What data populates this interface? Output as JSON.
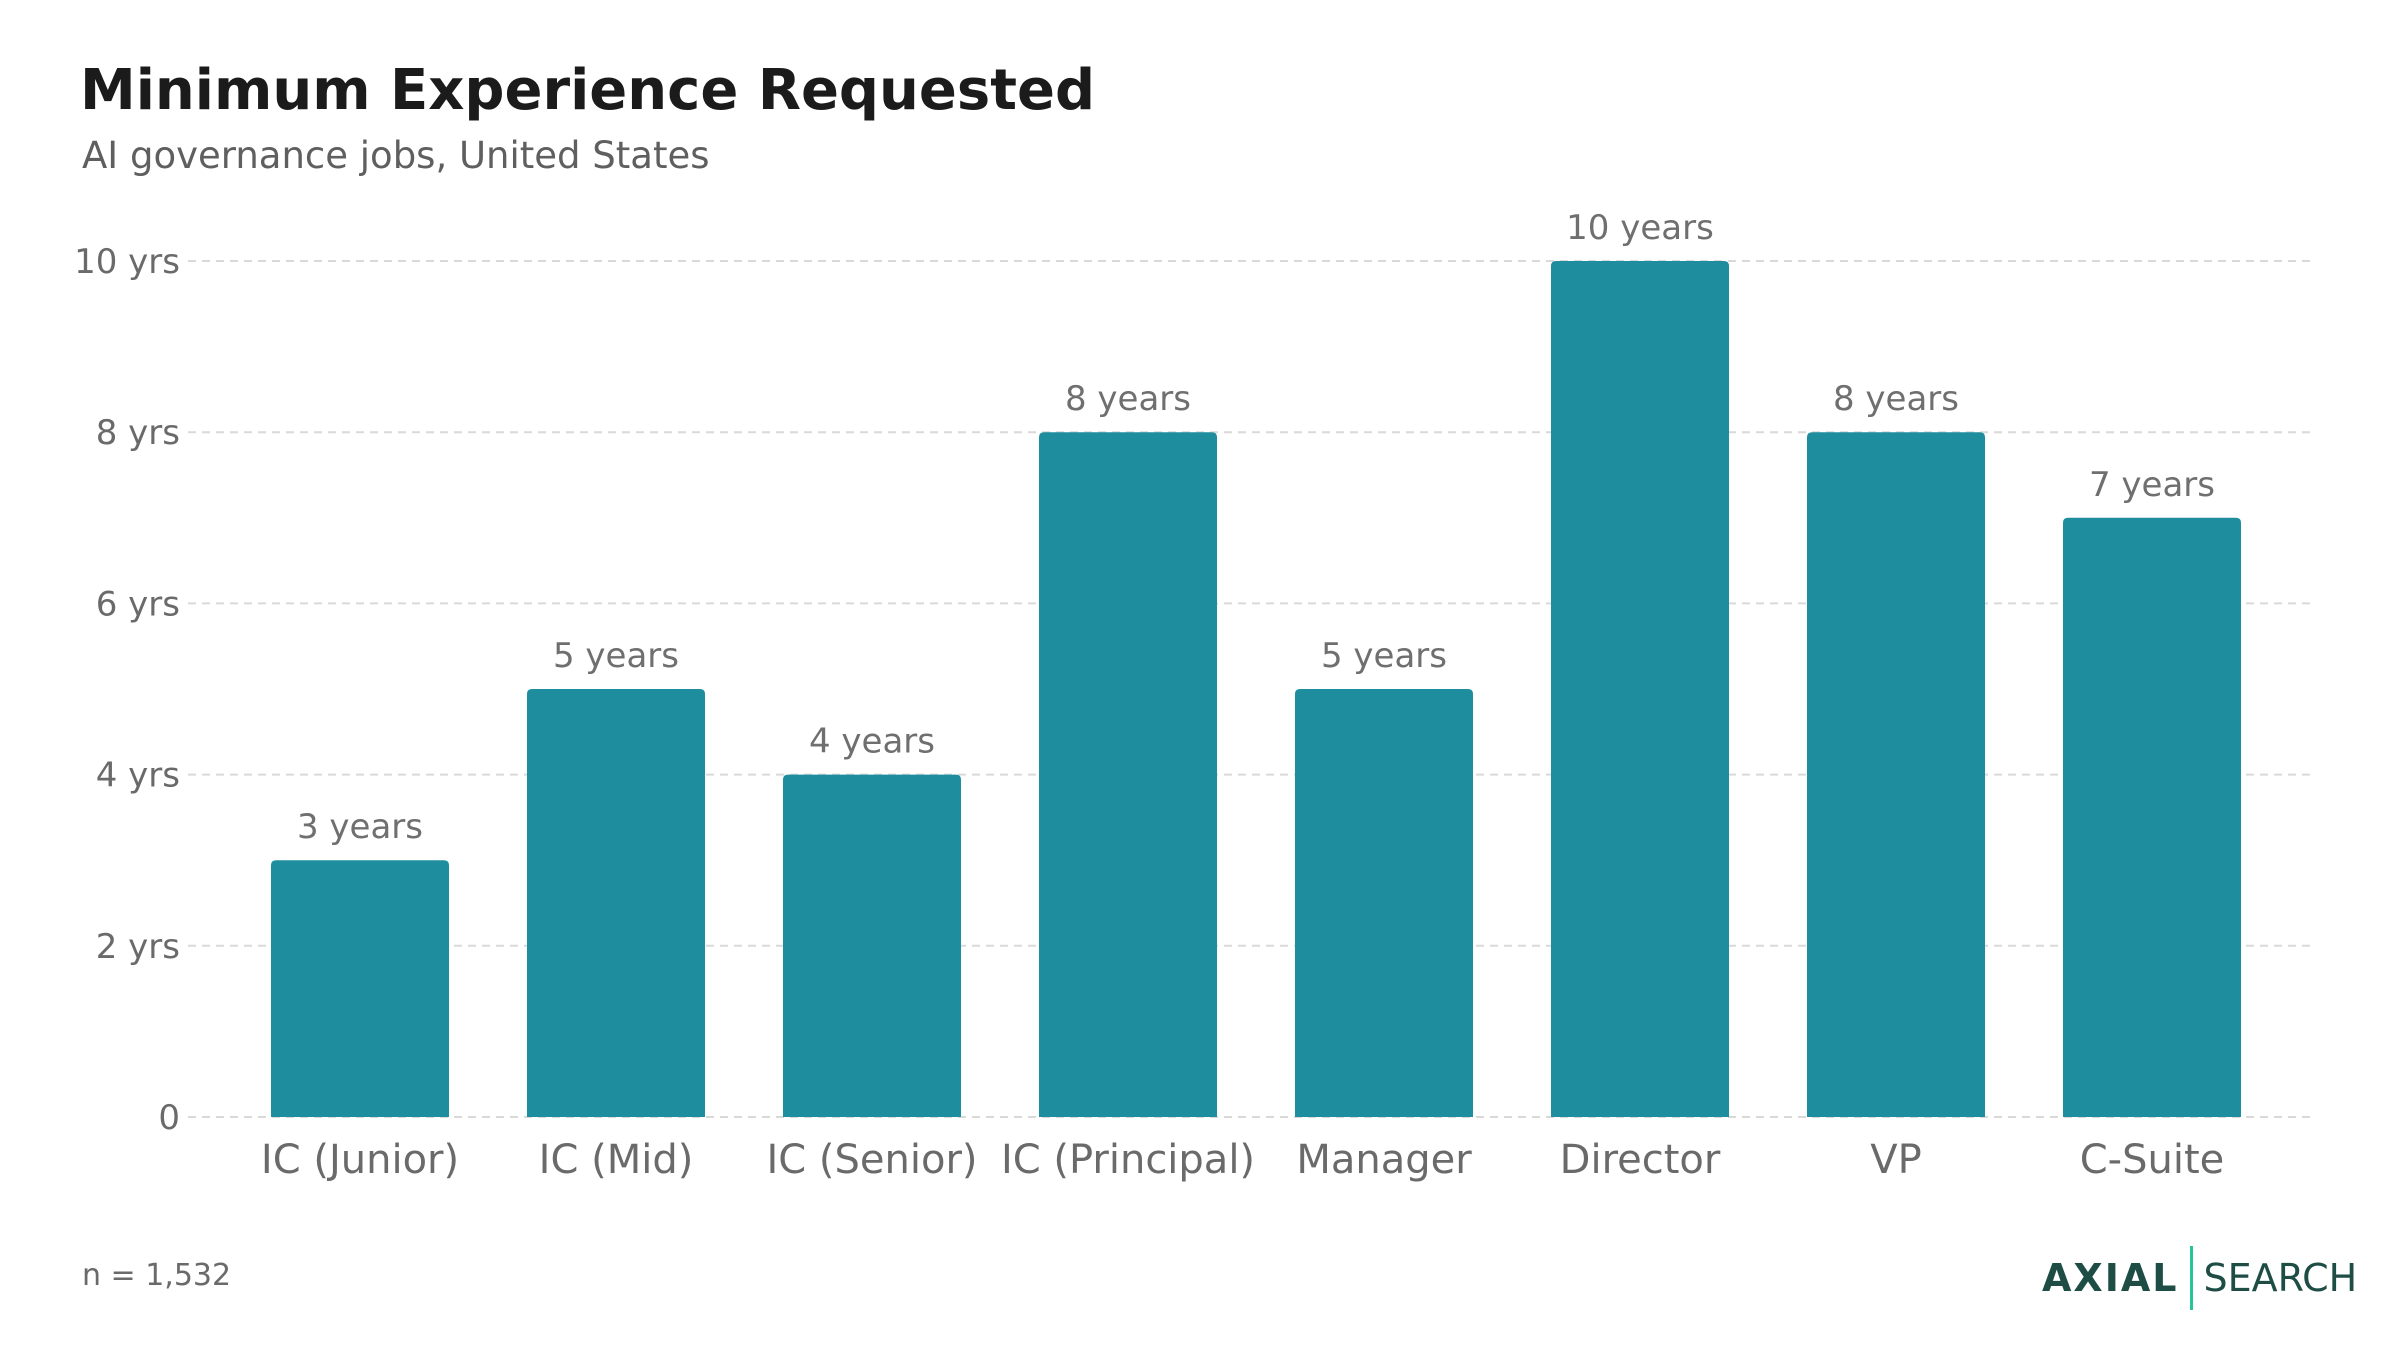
{
  "header": {
    "title": "Minimum Experience Requested",
    "subtitle": "AI governance jobs, United States"
  },
  "footnote": "n = 1,532",
  "logo": {
    "primary": "AXIAL",
    "secondary": "SEARCH"
  },
  "colors": {
    "bar": "#1e8d9e",
    "grid": "#d9d9d9",
    "tick_text": "#6a6a6a",
    "value_text": "#6f6f6f",
    "logo_accent": "#27c49a",
    "logo_text": "#1e4d45"
  },
  "chart_data": {
    "type": "bar",
    "title": "Minimum Experience Requested",
    "subtitle": "AI governance jobs, United States",
    "categories": [
      "IC (Junior)",
      "IC (Mid)",
      "IC (Senior)",
      "IC (Principal)",
      "Manager",
      "Director",
      "VP",
      "C-Suite"
    ],
    "values": [
      3,
      5,
      4,
      8,
      5,
      10,
      8,
      7
    ],
    "value_labels": [
      "3 years",
      "5 years",
      "4 years",
      "8 years",
      "5 years",
      "10 years",
      "8 years",
      "7 years"
    ],
    "yticks": [
      0,
      2,
      4,
      6,
      8,
      10
    ],
    "ytick_labels": [
      "0",
      "2 yrs",
      "4 yrs",
      "6 yrs",
      "8 yrs",
      "10 yrs"
    ],
    "ylim": [
      0,
      10
    ],
    "xlabel": "",
    "ylabel": "",
    "grid": true,
    "legend": "none"
  }
}
